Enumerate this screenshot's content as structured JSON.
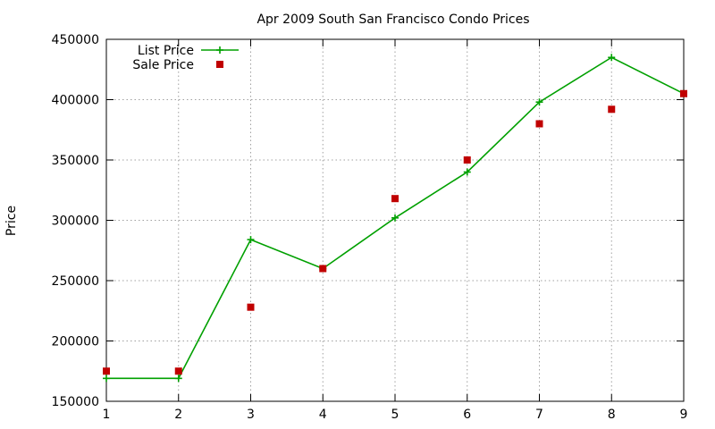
{
  "chart_data": {
    "type": "line",
    "title": "Apr 2009 South San Francisco Condo Prices",
    "xlabel": "",
    "ylabel": "Price",
    "x": [
      1,
      2,
      3,
      4,
      5,
      6,
      7,
      8,
      9
    ],
    "xlim": [
      1,
      9
    ],
    "ylim": [
      150000,
      450000
    ],
    "xticks": [
      "1",
      "2",
      "3",
      "4",
      "5",
      "6",
      "7",
      "8",
      "9"
    ],
    "yticks": [
      "150000",
      "200000",
      "250000",
      "300000",
      "350000",
      "400000",
      "450000"
    ],
    "grid": true,
    "legend_position": "top-left",
    "series": [
      {
        "name": "List Price",
        "style": "line-with-plus",
        "color": "#00a000",
        "values": [
          169000,
          169000,
          284000,
          260000,
          302000,
          340000,
          398000,
          435000,
          405000
        ]
      },
      {
        "name": "Sale Price",
        "style": "square-points",
        "color": "#c00000",
        "values": [
          175000,
          175000,
          228000,
          260000,
          318000,
          350000,
          380000,
          392000,
          405000
        ]
      }
    ]
  }
}
